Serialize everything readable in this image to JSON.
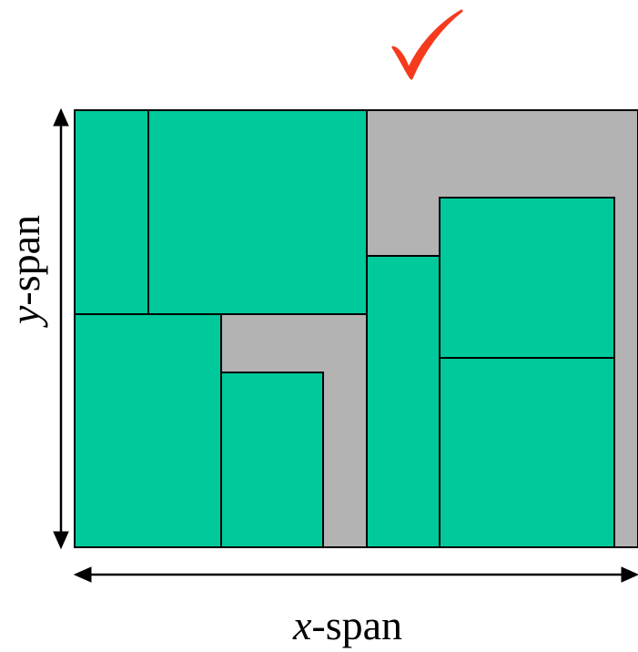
{
  "diagram": {
    "x_axis_label": {
      "variable": "x",
      "suffix": "-span"
    },
    "y_axis_label": {
      "variable": "y",
      "suffix": "-span"
    },
    "colors": {
      "rect_fill": "#00C99C",
      "background_fill": "#B3B3B3",
      "outline": "#000000",
      "checkmark": "#F53A1E"
    },
    "icons": {
      "checkmark": "checkmark-icon"
    }
  }
}
